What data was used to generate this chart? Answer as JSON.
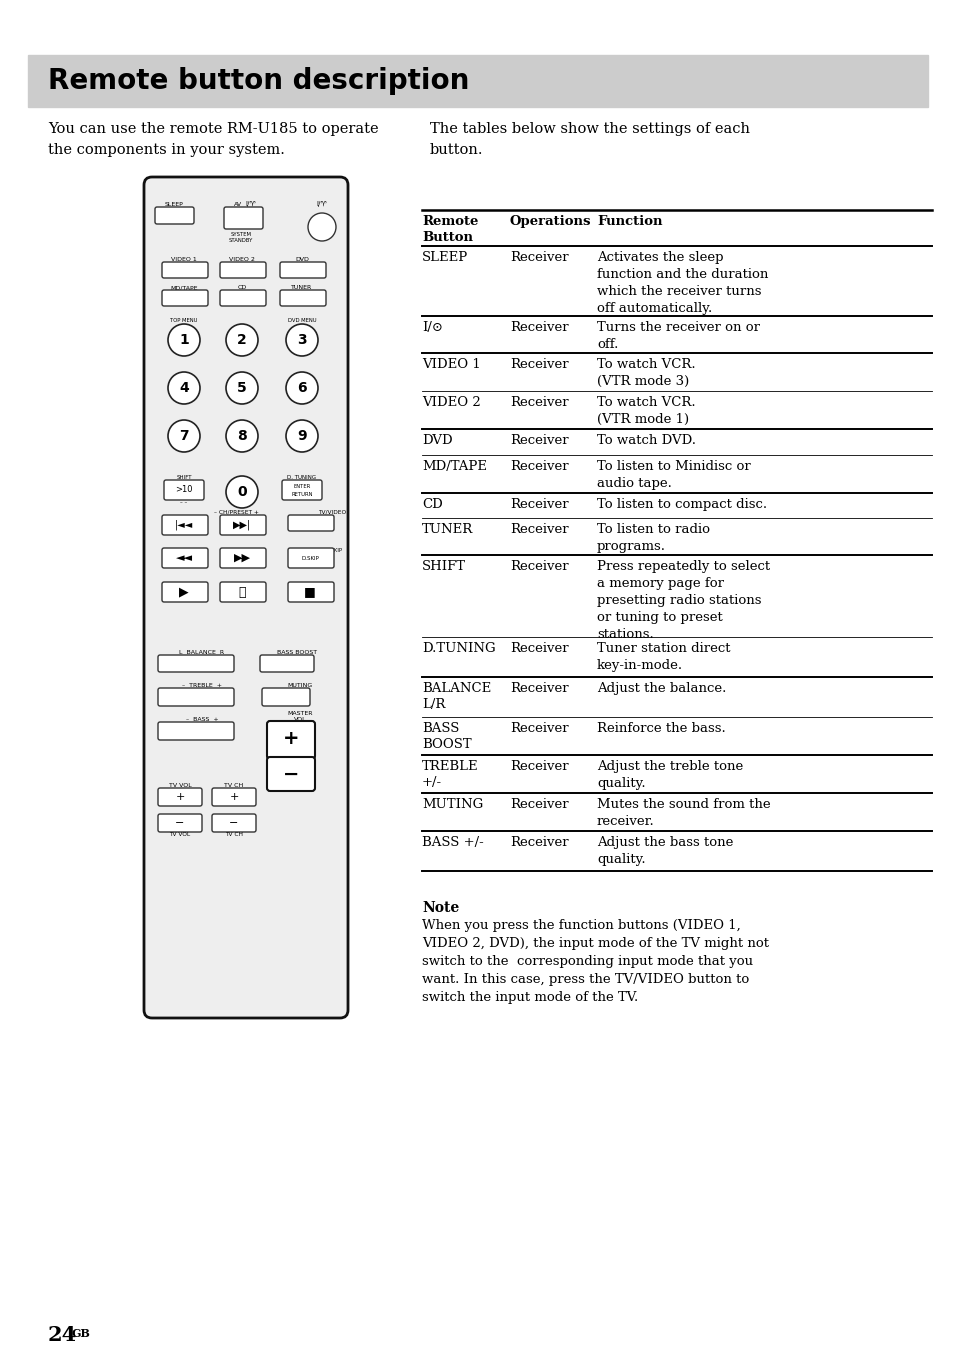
{
  "page_bg": "#ffffff",
  "header_bg": "#cccccc",
  "header_text": "Remote button description",
  "header_text_color": "#000000",
  "header_fontsize": 20,
  "body_left_text": "You can use the remote RM-U185 to operate\nthe components in your system.",
  "body_right_text": "The tables below show the settings of each\nbutton.",
  "table_headers": [
    "Remote\nButton",
    "Operations",
    "Function"
  ],
  "table_rows": [
    [
      "SLEEP",
      "Receiver",
      "Activates the sleep\nfunction and the duration\nwhich the receiver turns\noff automatically."
    ],
    [
      "I/⊙",
      "Receiver",
      "Turns the receiver on or\noff."
    ],
    [
      "VIDEO 1",
      "Receiver",
      "To watch VCR.\n(VTR mode 3)"
    ],
    [
      "VIDEO 2",
      "Receiver",
      "To watch VCR.\n(VTR mode 1)"
    ],
    [
      "DVD",
      "Receiver",
      "To watch DVD."
    ],
    [
      "MD/TAPE",
      "Receiver",
      "To listen to Minidisc or\naudio tape."
    ],
    [
      "CD",
      "Receiver",
      "To listen to compact disc."
    ],
    [
      "TUNER",
      "Receiver",
      "To listen to radio\nprograms."
    ],
    [
      "SHIFT",
      "Receiver",
      "Press repeatedly to select\na memory page for\npresetting radio stations\nor tuning to preset\nstations."
    ],
    [
      "D.TUNING",
      "Receiver",
      "Tuner station direct\nkey-in-mode."
    ],
    [
      "BALANCE\nL/R",
      "Receiver",
      "Adjust the balance."
    ],
    [
      "BASS\nBOOST",
      "Receiver",
      "Reinforce the bass."
    ],
    [
      "TREBLE\n+/-",
      "Receiver",
      "Adjust the treble tone\nquality."
    ],
    [
      "MUTING",
      "Receiver",
      "Mutes the sound from the\nreceiver."
    ],
    [
      "BASS +/-",
      "Receiver",
      "Adjust the bass tone\nquality."
    ]
  ],
  "note_title": "Note",
  "note_text": "When you press the function buttons (VIDEO 1,\nVIDEO 2, DVD), the input mode of the TV might not\nswitch to the  corresponding input mode that you\nwant. In this case, press the TV/VIDEO button to\nswitch the input mode of the TV.",
  "page_number": "24",
  "page_suffix": "GB",
  "font_size_body": 10.5,
  "font_size_table": 9.5,
  "font_size_note": 9.5
}
